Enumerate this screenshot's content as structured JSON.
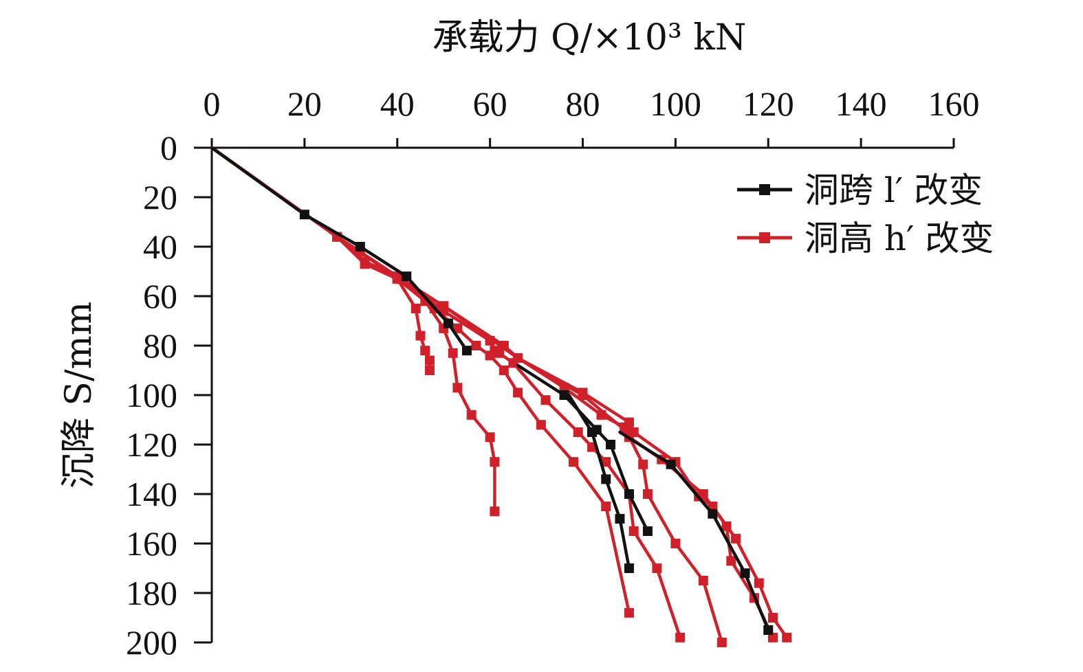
{
  "chart_data": {
    "type": "line",
    "xlabel": "承载力 Q/×10³ kN",
    "ylabel": "沉降 S/mm",
    "xlim": [
      0,
      160
    ],
    "ylim": [
      0,
      200
    ],
    "y_inverted": true,
    "x_axis_position": "top",
    "grid": false,
    "legend_position": "top-right",
    "xticks": [
      "0",
      "20",
      "40",
      "60",
      "80",
      "100",
      "120",
      "140",
      "160"
    ],
    "yticks": [
      "0",
      "20",
      "40",
      "60",
      "80",
      "100",
      "120",
      "140",
      "160",
      "180",
      "200"
    ],
    "legend": [
      {
        "label": "洞跨 l′ 改变",
        "color": "#111111"
      },
      {
        "label": "洞高 h′ 改变",
        "color": "#d0202a"
      }
    ],
    "series": [
      {
        "name": "洞跨 l′ 改变",
        "color": "#111111",
        "points": [
          [
            0,
            0
          ],
          [
            20,
            27
          ],
          [
            32,
            40
          ],
          [
            42,
            52
          ],
          [
            51,
            71
          ],
          [
            55,
            82
          ]
        ]
      },
      {
        "name": "洞跨 l′ 改变",
        "color": "#111111",
        "points": [
          [
            66,
            88
          ],
          [
            76,
            100
          ],
          [
            83,
            114
          ],
          [
            86,
            120
          ],
          [
            90,
            140
          ],
          [
            94,
            155
          ]
        ]
      },
      {
        "name": "洞跨 l′ 改变",
        "color": "#111111",
        "points": [
          [
            77,
            100
          ],
          [
            82,
            115
          ],
          [
            85,
            134
          ],
          [
            88,
            150
          ],
          [
            90,
            170
          ]
        ]
      },
      {
        "name": "洞跨 l′ 改变",
        "color": "#111111",
        "points": [
          [
            88,
            115
          ],
          [
            99,
            128
          ],
          [
            108,
            148
          ],
          [
            115,
            172
          ],
          [
            120,
            195
          ]
        ]
      },
      {
        "name": "洞高 h′ 改变",
        "color": "#d0202a",
        "points": [
          [
            0,
            0
          ],
          [
            27,
            36
          ],
          [
            33,
            47
          ],
          [
            40,
            53
          ],
          [
            44,
            65
          ],
          [
            45,
            76
          ],
          [
            46,
            82
          ],
          [
            47,
            86
          ],
          [
            47,
            90
          ]
        ]
      },
      {
        "name": "洞高 h′ 改变",
        "color": "#d0202a",
        "points": [
          [
            0,
            0
          ],
          [
            27,
            36
          ],
          [
            33,
            46
          ],
          [
            40,
            52
          ],
          [
            46,
            62
          ],
          [
            50,
            73
          ],
          [
            52,
            83
          ],
          [
            53,
            97
          ],
          [
            56,
            108
          ],
          [
            60,
            117
          ],
          [
            61,
            127
          ],
          [
            61,
            147
          ]
        ]
      },
      {
        "name": "洞高 h′ 改变",
        "color": "#d0202a",
        "points": [
          [
            0,
            0
          ],
          [
            27,
            36
          ],
          [
            32,
            42
          ],
          [
            40,
            53
          ],
          [
            48,
            65
          ],
          [
            53,
            73
          ],
          [
            57,
            80
          ],
          [
            60,
            84
          ],
          [
            63,
            90
          ],
          [
            66,
            99
          ],
          [
            71,
            112
          ],
          [
            78,
            127
          ],
          [
            85,
            145
          ],
          [
            90,
            188
          ]
        ]
      },
      {
        "name": "洞高 h′ 改变",
        "color": "#d0202a",
        "points": [
          [
            0,
            0
          ],
          [
            27,
            36
          ],
          [
            40,
            52
          ],
          [
            50,
            66
          ],
          [
            60,
            78
          ],
          [
            61,
            82
          ],
          [
            62,
            83
          ],
          [
            65,
            87
          ],
          [
            72,
            102
          ],
          [
            79,
            115
          ],
          [
            82,
            121
          ],
          [
            85,
            127
          ],
          [
            90,
            140
          ],
          [
            91,
            155
          ],
          [
            96,
            170
          ],
          [
            101,
            198
          ]
        ]
      },
      {
        "name": "洞高 h′ 改变",
        "color": "#d0202a",
        "points": [
          [
            0,
            0
          ],
          [
            27,
            36
          ],
          [
            40,
            52
          ],
          [
            50,
            64
          ],
          [
            63,
            80
          ],
          [
            66,
            85
          ],
          [
            76,
            97
          ],
          [
            84,
            108
          ],
          [
            89,
            113
          ],
          [
            93,
            128
          ],
          [
            94,
            140
          ],
          [
            100,
            160
          ],
          [
            106,
            175
          ],
          [
            110,
            200
          ]
        ]
      },
      {
        "name": "洞高 h′ 改变",
        "color": "#d0202a",
        "points": [
          [
            0,
            0
          ],
          [
            27,
            36
          ],
          [
            40,
            52
          ],
          [
            50,
            64
          ],
          [
            66,
            85
          ],
          [
            80,
            100
          ],
          [
            89,
            114
          ],
          [
            90,
            117
          ],
          [
            97,
            126
          ],
          [
            106,
            140
          ],
          [
            111,
            153
          ],
          [
            112,
            167
          ],
          [
            117,
            182
          ],
          [
            121,
            198
          ]
        ]
      },
      {
        "name": "洞高 h′ 改变",
        "color": "#d0202a",
        "points": [
          [
            0,
            0
          ],
          [
            27,
            36
          ],
          [
            40,
            52
          ],
          [
            50,
            64
          ],
          [
            66,
            85
          ],
          [
            80,
            99
          ],
          [
            90,
            111
          ],
          [
            91,
            115
          ],
          [
            100,
            127
          ],
          [
            105,
            141
          ],
          [
            108,
            145
          ],
          [
            113,
            158
          ],
          [
            118,
            176
          ],
          [
            121,
            190
          ],
          [
            124,
            198
          ]
        ]
      }
    ]
  }
}
